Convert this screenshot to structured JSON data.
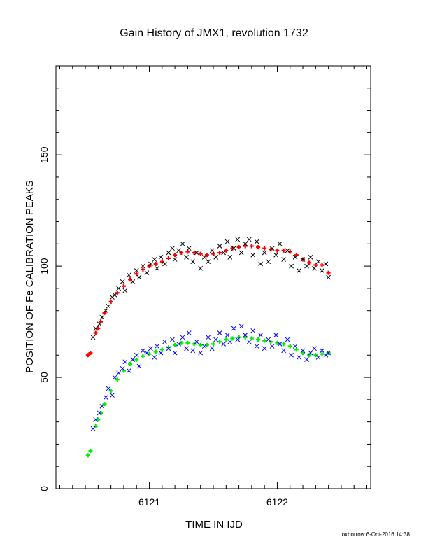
{
  "chart_data": {
    "type": "scatter",
    "title": "Gain History of JMX1, revolution 1732",
    "xlabel": "TIME IN IJD",
    "ylabel": "POSITION OF Fe CALIBRATION PEAKS",
    "footer": "oxborrow  6-Oct-2016 14:38",
    "xlim": [
      6120.27,
      6122.73
    ],
    "ylim": [
      0,
      190
    ],
    "x_ticks": [
      {
        "value": 6121,
        "label": "6121"
      },
      {
        "value": 6122,
        "label": "6122"
      }
    ],
    "y_ticks": [
      {
        "value": 0,
        "label": "0"
      },
      {
        "value": 50,
        "label": "50"
      },
      {
        "value": 100,
        "label": "100"
      },
      {
        "value": 150,
        "label": "150"
      }
    ],
    "grid": false,
    "colors": {
      "upper_raw": "#000000",
      "upper_fit": "#ff0000",
      "lower_raw": "#0000ff",
      "lower_fit": "#00ee00"
    },
    "series": [
      {
        "key": "upper_fit",
        "marker": "plus",
        "points": [
          [
            6120.52,
            60
          ],
          [
            6120.54,
            61
          ],
          [
            6120.58,
            70
          ],
          [
            6120.6,
            72
          ],
          [
            6120.62,
            75
          ],
          [
            6120.65,
            79
          ],
          [
            6120.7,
            84
          ],
          [
            6120.75,
            88
          ],
          [
            6120.8,
            91
          ],
          [
            6120.85,
            94
          ],
          [
            6120.9,
            96.5
          ],
          [
            6120.95,
            98.5
          ],
          [
            6121.0,
            100
          ],
          [
            6121.05,
            101
          ],
          [
            6121.1,
            102
          ],
          [
            6121.15,
            103.5
          ],
          [
            6121.2,
            105
          ],
          [
            6121.25,
            106
          ],
          [
            6121.3,
            106.5
          ],
          [
            6121.35,
            106
          ],
          [
            6121.4,
            105.5
          ],
          [
            6121.45,
            105
          ],
          [
            6121.5,
            105.5
          ],
          [
            6121.55,
            106
          ],
          [
            6121.6,
            107
          ],
          [
            6121.65,
            108
          ],
          [
            6121.7,
            108.5
          ],
          [
            6121.75,
            109
          ],
          [
            6121.8,
            109
          ],
          [
            6121.85,
            108.5
          ],
          [
            6121.9,
            108
          ],
          [
            6121.95,
            107.5
          ],
          [
            6122.0,
            107
          ],
          [
            6122.05,
            107
          ],
          [
            6122.1,
            106.5
          ],
          [
            6122.15,
            105
          ],
          [
            6122.2,
            103
          ],
          [
            6122.25,
            101.5
          ],
          [
            6122.3,
            100.5
          ],
          [
            6122.35,
            100.5
          ],
          [
            6122.4,
            97
          ]
        ]
      },
      {
        "key": "lower_fit",
        "marker": "plus",
        "points": [
          [
            6120.52,
            15
          ],
          [
            6120.54,
            17
          ],
          [
            6120.58,
            28
          ],
          [
            6120.6,
            31
          ],
          [
            6120.62,
            34
          ],
          [
            6120.65,
            38
          ],
          [
            6120.7,
            44
          ],
          [
            6120.75,
            49
          ],
          [
            6120.8,
            53
          ],
          [
            6120.85,
            56
          ],
          [
            6120.9,
            58
          ],
          [
            6120.95,
            59.5
          ],
          [
            6121.0,
            60.5
          ],
          [
            6121.05,
            61.5
          ],
          [
            6121.1,
            62.5
          ],
          [
            6121.15,
            63.5
          ],
          [
            6121.2,
            64.5
          ],
          [
            6121.25,
            65.5
          ],
          [
            6121.3,
            65.5
          ],
          [
            6121.35,
            65
          ],
          [
            6121.4,
            64.5
          ],
          [
            6121.45,
            64.5
          ],
          [
            6121.5,
            65
          ],
          [
            6121.55,
            66
          ],
          [
            6121.6,
            67
          ],
          [
            6121.65,
            67.5
          ],
          [
            6121.7,
            68
          ],
          [
            6121.75,
            68
          ],
          [
            6121.8,
            67.5
          ],
          [
            6121.85,
            67
          ],
          [
            6121.9,
            66.5
          ],
          [
            6121.95,
            66
          ],
          [
            6122.0,
            65.5
          ],
          [
            6122.05,
            65
          ],
          [
            6122.1,
            64
          ],
          [
            6122.15,
            62.5
          ],
          [
            6122.2,
            61
          ],
          [
            6122.25,
            60
          ],
          [
            6122.3,
            60
          ],
          [
            6122.35,
            60.5
          ],
          [
            6122.4,
            61
          ]
        ]
      },
      {
        "key": "upper_raw",
        "marker": "cross",
        "points": [
          [
            6120.56,
            68
          ],
          [
            6120.58,
            72
          ],
          [
            6120.61,
            74
          ],
          [
            6120.63,
            77
          ],
          [
            6120.66,
            80
          ],
          [
            6120.68,
            82
          ],
          [
            6120.71,
            86
          ],
          [
            6120.73,
            87
          ],
          [
            6120.76,
            90
          ],
          [
            6120.79,
            93
          ],
          [
            6120.81,
            89
          ],
          [
            6120.84,
            96
          ],
          [
            6120.87,
            93
          ],
          [
            6120.9,
            98
          ],
          [
            6120.92,
            95
          ],
          [
            6120.95,
            100
          ],
          [
            6120.98,
            97
          ],
          [
            6121.01,
            101
          ],
          [
            6121.04,
            103
          ],
          [
            6121.06,
            99
          ],
          [
            6121.09,
            104
          ],
          [
            6121.12,
            101
          ],
          [
            6121.15,
            106
          ],
          [
            6121.18,
            108
          ],
          [
            6121.2,
            103
          ],
          [
            6121.23,
            107
          ],
          [
            6121.26,
            110
          ],
          [
            6121.29,
            104
          ],
          [
            6121.31,
            108
          ],
          [
            6121.34,
            102
          ],
          [
            6121.37,
            106
          ],
          [
            6121.4,
            99
          ],
          [
            6121.43,
            104
          ],
          [
            6121.46,
            102
          ],
          [
            6121.49,
            107
          ],
          [
            6121.52,
            104
          ],
          [
            6121.55,
            109
          ],
          [
            6121.58,
            106
          ],
          [
            6121.61,
            111
          ],
          [
            6121.63,
            104
          ],
          [
            6121.66,
            108
          ],
          [
            6121.69,
            112
          ],
          [
            6121.72,
            106
          ],
          [
            6121.75,
            110
          ],
          [
            6121.78,
            112
          ],
          [
            6121.81,
            105
          ],
          [
            6121.84,
            111
          ],
          [
            6121.87,
            101
          ],
          [
            6121.9,
            106
          ],
          [
            6121.93,
            102
          ],
          [
            6121.96,
            108
          ],
          [
            6121.99,
            105
          ],
          [
            6122.02,
            110
          ],
          [
            6122.05,
            103
          ],
          [
            6122.08,
            107
          ],
          [
            6122.11,
            100
          ],
          [
            6122.14,
            104
          ],
          [
            6122.17,
            98
          ],
          [
            6122.2,
            103
          ],
          [
            6122.23,
            100
          ],
          [
            6122.26,
            104
          ],
          [
            6122.29,
            99
          ],
          [
            6122.32,
            102
          ],
          [
            6122.35,
            98
          ],
          [
            6122.38,
            101
          ],
          [
            6122.4,
            95
          ]
        ]
      },
      {
        "key": "lower_raw",
        "marker": "cross",
        "points": [
          [
            6120.56,
            27
          ],
          [
            6120.58,
            31
          ],
          [
            6120.61,
            34
          ],
          [
            6120.63,
            37
          ],
          [
            6120.66,
            41
          ],
          [
            6120.68,
            45
          ],
          [
            6120.71,
            42
          ],
          [
            6120.73,
            50
          ],
          [
            6120.76,
            52
          ],
          [
            6120.79,
            54
          ],
          [
            6120.81,
            57
          ],
          [
            6120.84,
            53
          ],
          [
            6120.87,
            58
          ],
          [
            6120.9,
            60
          ],
          [
            6120.92,
            55
          ],
          [
            6120.95,
            62
          ],
          [
            6120.98,
            61
          ],
          [
            6121.01,
            63
          ],
          [
            6121.04,
            59
          ],
          [
            6121.06,
            64
          ],
          [
            6121.09,
            61
          ],
          [
            6121.12,
            66
          ],
          [
            6121.15,
            63
          ],
          [
            6121.18,
            67
          ],
          [
            6121.2,
            61
          ],
          [
            6121.23,
            65
          ],
          [
            6121.26,
            68
          ],
          [
            6121.29,
            63
          ],
          [
            6121.31,
            70
          ],
          [
            6121.34,
            62
          ],
          [
            6121.37,
            66
          ],
          [
            6121.4,
            61
          ],
          [
            6121.43,
            64
          ],
          [
            6121.46,
            68
          ],
          [
            6121.49,
            63
          ],
          [
            6121.52,
            67
          ],
          [
            6121.55,
            70
          ],
          [
            6121.58,
            65
          ],
          [
            6121.61,
            69
          ],
          [
            6121.63,
            66
          ],
          [
            6121.66,
            72
          ],
          [
            6121.69,
            67
          ],
          [
            6121.72,
            73
          ],
          [
            6121.75,
            69
          ],
          [
            6121.78,
            66
          ],
          [
            6121.81,
            71
          ],
          [
            6121.84,
            64
          ],
          [
            6121.87,
            69
          ],
          [
            6121.9,
            63
          ],
          [
            6121.93,
            67
          ],
          [
            6121.96,
            64
          ],
          [
            6121.99,
            69
          ],
          [
            6122.02,
            65
          ],
          [
            6122.05,
            62
          ],
          [
            6122.08,
            67
          ],
          [
            6122.11,
            60
          ],
          [
            6122.14,
            64
          ],
          [
            6122.17,
            59
          ],
          [
            6122.2,
            62
          ],
          [
            6122.23,
            58
          ],
          [
            6122.26,
            61
          ],
          [
            6122.29,
            63
          ],
          [
            6122.32,
            59
          ],
          [
            6122.35,
            62
          ],
          [
            6122.38,
            60
          ],
          [
            6122.4,
            61
          ]
        ]
      }
    ]
  }
}
